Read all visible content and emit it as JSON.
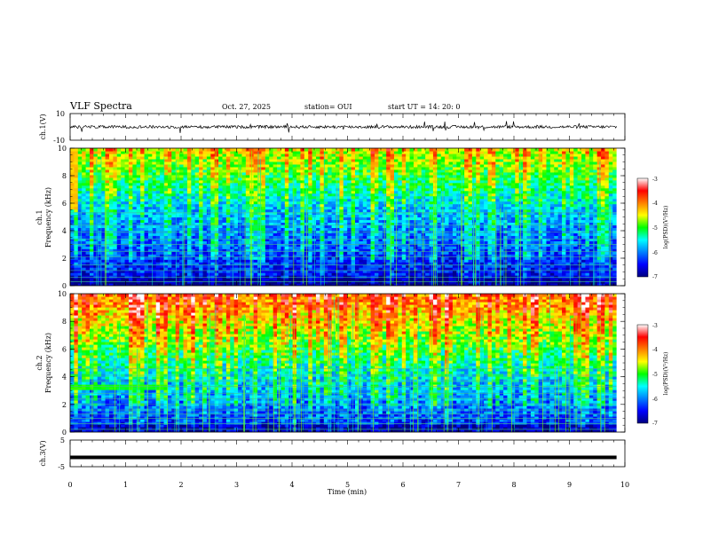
{
  "header": {
    "title": "VLF Spectra",
    "date": "Oct. 27, 2025",
    "station": "station= OUI",
    "start": "start  UT  =   14: 20: 0"
  },
  "chart_data": [
    {
      "id": "ch1_waveform",
      "type": "line",
      "ylabel": "ch.1(V)",
      "yticks": [
        "10",
        "-10"
      ],
      "ylim": [
        -10,
        10
      ]
    },
    {
      "id": "ch1_spectrogram",
      "type": "heatmap",
      "ylabel_channel": "ch.1",
      "ylabel": "Frequency  (kHz)",
      "yticks": [
        "0",
        "2",
        "4",
        "6",
        "8",
        "10"
      ],
      "ylim": [
        0,
        10
      ],
      "colorbar": {
        "label": "log(PSD)(V²/Hz)",
        "ticks": [
          "-3",
          "-4",
          "-5",
          "-6",
          "-7"
        ],
        "range": [
          -7,
          -3
        ]
      }
    },
    {
      "id": "ch2_spectrogram",
      "type": "heatmap",
      "ylabel_channel": "ch.2",
      "ylabel": "Frequency  (kHz)",
      "yticks": [
        "0",
        "2",
        "4",
        "6",
        "8",
        "10"
      ],
      "ylim": [
        0,
        10
      ],
      "colorbar": {
        "label": "log(PSD)(V²/Hz)",
        "ticks": [
          "-3",
          "-4",
          "-5",
          "-6",
          "-7"
        ],
        "range": [
          -7,
          -3
        ]
      }
    },
    {
      "id": "ch3_waveform",
      "type": "line",
      "ylabel": "ch.3(V)",
      "yticks": [
        "5",
        "-5"
      ],
      "ylim": [
        -5,
        5
      ],
      "value": -1.5
    }
  ],
  "xaxis": {
    "label": "Time  (min)",
    "ticks": [
      "0",
      "1",
      "2",
      "3",
      "4",
      "5",
      "6",
      "7",
      "8",
      "9",
      "10"
    ],
    "xlim": [
      0,
      10
    ],
    "data_end": 9.85
  }
}
